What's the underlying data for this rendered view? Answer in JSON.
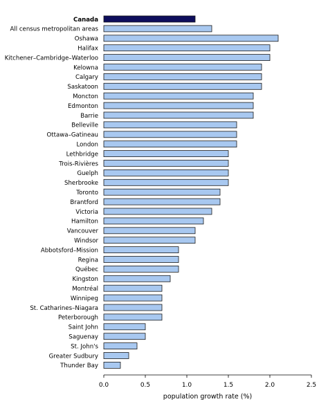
{
  "chart_data": {
    "type": "bar",
    "orientation": "horizontal",
    "xlabel": "population growth rate (%)",
    "xlim": [
      0,
      2.5
    ],
    "xticks": [
      {
        "value": 0,
        "label": "0.0"
      },
      {
        "value": 0.5,
        "label": "0.5"
      },
      {
        "value": 1.0,
        "label": "1.0"
      },
      {
        "value": 1.5,
        "label": "1.5"
      },
      {
        "value": 2.0,
        "label": "2.0"
      },
      {
        "value": 2.5,
        "label": "2.5"
      }
    ],
    "grid": false,
    "colors": {
      "highlight": "#0d0d5c",
      "bar": "#a8c8f0",
      "outline": "#1a1a1a"
    },
    "categories": [
      "Canada",
      "All census metropolitan areas",
      "Oshawa",
      "Halifax",
      "Kitchener–Cambridge–Waterloo",
      "Kelowna",
      "Calgary",
      "Saskatoon",
      "Moncton",
      "Edmonton",
      "Barrie",
      "Belleville",
      "Ottawa–Gatineau",
      "London",
      "Lethbridge",
      "Trois-Rivières",
      "Guelph",
      "Sherbrooke",
      "Toronto",
      "Brantford",
      "Victoria",
      "Hamilton",
      "Vancouver",
      "Windsor",
      "Abbotsford–Mission",
      "Regina",
      "Québec",
      "Kingston",
      "Montréal",
      "Winnipeg",
      "St. Catharines–Niagara",
      "Peterborough",
      "Saint John",
      "Saguenay",
      "St. John's",
      "Greater Sudbury",
      "Thunder Bay"
    ],
    "values": [
      1.1,
      1.3,
      2.1,
      2.0,
      2.0,
      1.9,
      1.9,
      1.9,
      1.8,
      1.8,
      1.8,
      1.6,
      1.6,
      1.6,
      1.5,
      1.5,
      1.5,
      1.5,
      1.4,
      1.4,
      1.3,
      1.2,
      1.1,
      1.1,
      0.9,
      0.9,
      0.9,
      0.8,
      0.7,
      0.7,
      0.7,
      0.7,
      0.5,
      0.5,
      0.4,
      0.3,
      0.2
    ],
    "highlight": [
      "Canada"
    ]
  }
}
